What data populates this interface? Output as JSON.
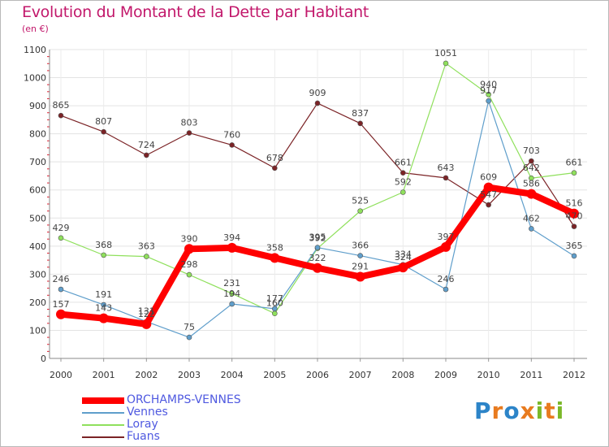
{
  "title": "Evolution du Montant de la Dette par Habitant",
  "unit": "(en €)",
  "logo": "Proxiti",
  "logo_colors": [
    "#2c84c8",
    "#e87b1f",
    "#2c84c8",
    "#e87b1f",
    "#7bb829",
    "#e87b1f",
    "#7bb829"
  ],
  "chart_data": {
    "type": "line",
    "title": "Evolution du Montant de la Dette par Habitant",
    "ylabel": "(en €)",
    "xlabel": "",
    "x": [
      "2000",
      "2001",
      "2002",
      "2003",
      "2004",
      "2005",
      "2006",
      "2007",
      "2008",
      "2009",
      "2010",
      "2011",
      "2012"
    ],
    "ylim": [
      0,
      1100
    ],
    "yticks": [
      0,
      100,
      200,
      300,
      400,
      500,
      600,
      700,
      800,
      900,
      1000,
      1100
    ],
    "grid": true,
    "legend": "bottom-left",
    "series": [
      {
        "name": "ORCHAMPS-VENNES",
        "color": "#ff0000",
        "values": [
          157,
          143,
          122,
          390,
          394,
          358,
          322,
          291,
          324,
          397,
          609,
          586,
          516
        ]
      },
      {
        "name": "Vennes",
        "color": "#5f9ecb",
        "values": [
          246,
          191,
          131,
          75,
          194,
          177,
          395,
          366,
          334,
          246,
          917,
          462,
          365
        ]
      },
      {
        "name": "Loray",
        "color": "#8fe05c",
        "values": [
          429,
          368,
          363,
          298,
          231,
          160,
          392,
          525,
          592,
          1051,
          940,
          642,
          661
        ]
      },
      {
        "name": "Fuans",
        "color": "#7b2326",
        "values": [
          865,
          807,
          724,
          803,
          760,
          678,
          909,
          837,
          661,
          643,
          547,
          703,
          470
        ]
      }
    ]
  }
}
